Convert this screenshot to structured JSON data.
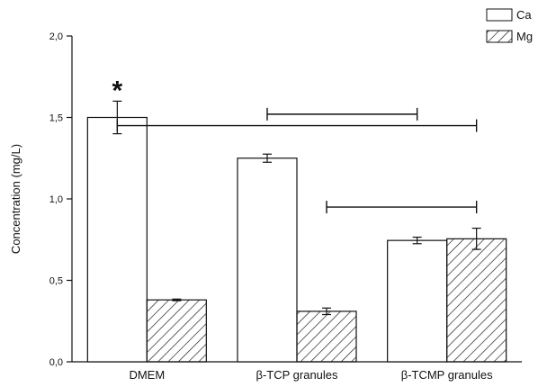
{
  "chart_data": {
    "type": "bar",
    "categories": [
      "DMEM",
      "β-TCP granules",
      "β-TCMP granules"
    ],
    "series": [
      {
        "name": "Ca",
        "values": [
          1.5,
          1.25,
          0.745
        ],
        "errors": [
          0.1,
          0.025,
          0.02
        ],
        "pattern": "none"
      },
      {
        "name": "Mg",
        "values": [
          0.38,
          0.31,
          0.755
        ],
        "errors": [
          0.005,
          0.02,
          0.065
        ],
        "pattern": "hatched"
      }
    ],
    "xlabel": "",
    "ylabel": "Concentration (mg/L)",
    "ylim": [
      0,
      2.0
    ],
    "yticks": [
      "0,0",
      "0,5",
      "1,0",
      "1,5",
      "2,0"
    ],
    "legend_position": "top-right",
    "grid": false,
    "annotations": {
      "star": "*"
    },
    "comparison_brackets": [
      {
        "from": [
          "β-TCP granules",
          "Ca"
        ],
        "to": [
          "β-TCMP granules",
          "Ca"
        ],
        "y": 1.52
      },
      {
        "from": [
          "DMEM",
          "Ca"
        ],
        "to": [
          "β-TCMP granules",
          "Mg"
        ],
        "y": 1.45
      },
      {
        "from": [
          "β-TCP granules",
          "Mg"
        ],
        "to": [
          "β-TCMP granules",
          "Mg"
        ],
        "y": 0.95
      }
    ],
    "colors": {
      "bar_fill": "#ffffff",
      "stroke": "#111111",
      "hatch": "#222222"
    }
  }
}
